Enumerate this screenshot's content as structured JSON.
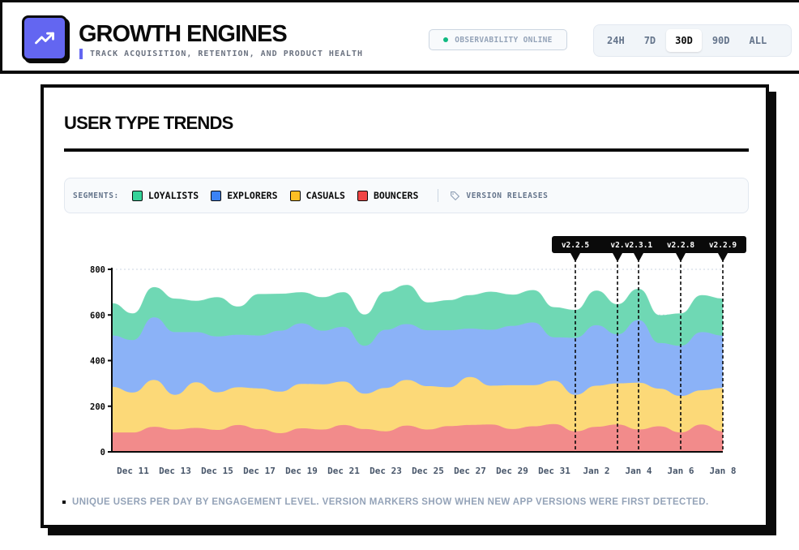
{
  "header": {
    "title": "GROWTH ENGINES",
    "subtitle": "TRACK ACQUISITION, RETENTION, AND PRODUCT HEALTH",
    "logo_icon": "trending-up-icon",
    "status": "OBSERVABILITY ONLINE",
    "status_color": "#10b981",
    "ranges": [
      "24H",
      "7D",
      "30D",
      "90D",
      "ALL"
    ],
    "active_range": "30D"
  },
  "card": {
    "title": "USER TYPE TRENDS",
    "segments_label": "SEGMENTS:",
    "segments": [
      {
        "name": "LOYALISTS",
        "color": "#34d399"
      },
      {
        "name": "EXPLORERS",
        "color": "#3b82f6"
      },
      {
        "name": "CASUALS",
        "color": "#fbbf24"
      },
      {
        "name": "BOUNCERS",
        "color": "#ef4444"
      }
    ],
    "versions_label": "VERSION RELEASES",
    "versions_icon": "tag-icon",
    "caption": "UNIQUE USERS PER DAY BY ENGAGEMENT LEVEL. VERSION MARKERS SHOW WHEN NEW APP VERSIONS WERE FIRST DETECTED."
  },
  "chart_data": {
    "type": "area",
    "stacked": true,
    "ylim": [
      0,
      800
    ],
    "yticks": [
      0,
      200,
      400,
      600,
      800
    ],
    "grid": "horizontal dotted",
    "x": [
      "Dec 10",
      "Dec 11",
      "Dec 12",
      "Dec 13",
      "Dec 14",
      "Dec 15",
      "Dec 16",
      "Dec 17",
      "Dec 18",
      "Dec 19",
      "Dec 20",
      "Dec 21",
      "Dec 22",
      "Dec 23",
      "Dec 24",
      "Dec 25",
      "Dec 26",
      "Dec 27",
      "Dec 28",
      "Dec 29",
      "Dec 30",
      "Dec 31",
      "Jan 1",
      "Jan 2",
      "Jan 3",
      "Jan 4",
      "Jan 5",
      "Jan 6",
      "Jan 7",
      "Jan 8"
    ],
    "xtick_labels": [
      "Dec 11",
      "Dec 13",
      "Dec 15",
      "Dec 17",
      "Dec 19",
      "Dec 21",
      "Dec 23",
      "Dec 25",
      "Dec 27",
      "Dec 29",
      "Dec 31",
      "Jan 2",
      "Jan 4",
      "Jan 6",
      "Jan 8"
    ],
    "series": [
      {
        "name": "BOUNCERS",
        "color": "#f28b8b",
        "values": [
          85,
          85,
          110,
          98,
          105,
          96,
          118,
          100,
          82,
          103,
          98,
          118,
          100,
          90,
          115,
          98,
          113,
          118,
          120,
          100,
          112,
          122,
          90,
          110,
          120,
          98,
          112,
          85,
          120,
          90
        ]
      },
      {
        "name": "CASUALS",
        "color": "#fcd978",
        "values": [
          200,
          175,
          205,
          152,
          200,
          165,
          165,
          178,
          182,
          195,
          198,
          190,
          155,
          190,
          200,
          190,
          170,
          210,
          170,
          192,
          180,
          190,
          160,
          180,
          180,
          205,
          165,
          160,
          150,
          190
        ]
      },
      {
        "name": "EXPLORERS",
        "color": "#8bb2f7",
        "values": [
          225,
          230,
          275,
          275,
          220,
          245,
          230,
          232,
          267,
          265,
          235,
          240,
          210,
          255,
          245,
          245,
          250,
          212,
          245,
          260,
          275,
          190,
          250,
          265,
          215,
          275,
          200,
          220,
          255,
          230
        ]
      },
      {
        "name": "LOYALISTS",
        "color": "#6fd8b4",
        "values": [
          140,
          115,
          130,
          145,
          135,
          170,
          122,
          180,
          160,
          135,
          145,
          150,
          135,
          165,
          170,
          120,
          130,
          145,
          165,
          135,
          140,
          130,
          120,
          150,
          130,
          135,
          120,
          140,
          160,
          160
        ]
      }
    ],
    "version_markers": [
      {
        "label": "v2.2.5",
        "x": "Jan 1"
      },
      {
        "label": "v2.",
        "x": "Jan 3"
      },
      {
        "label": "v2.3.1",
        "x": "Jan 4"
      },
      {
        "label": "v2.2.8",
        "x": "Jan 6"
      },
      {
        "label": "v2.2.9",
        "x": "Jan 8"
      }
    ]
  }
}
